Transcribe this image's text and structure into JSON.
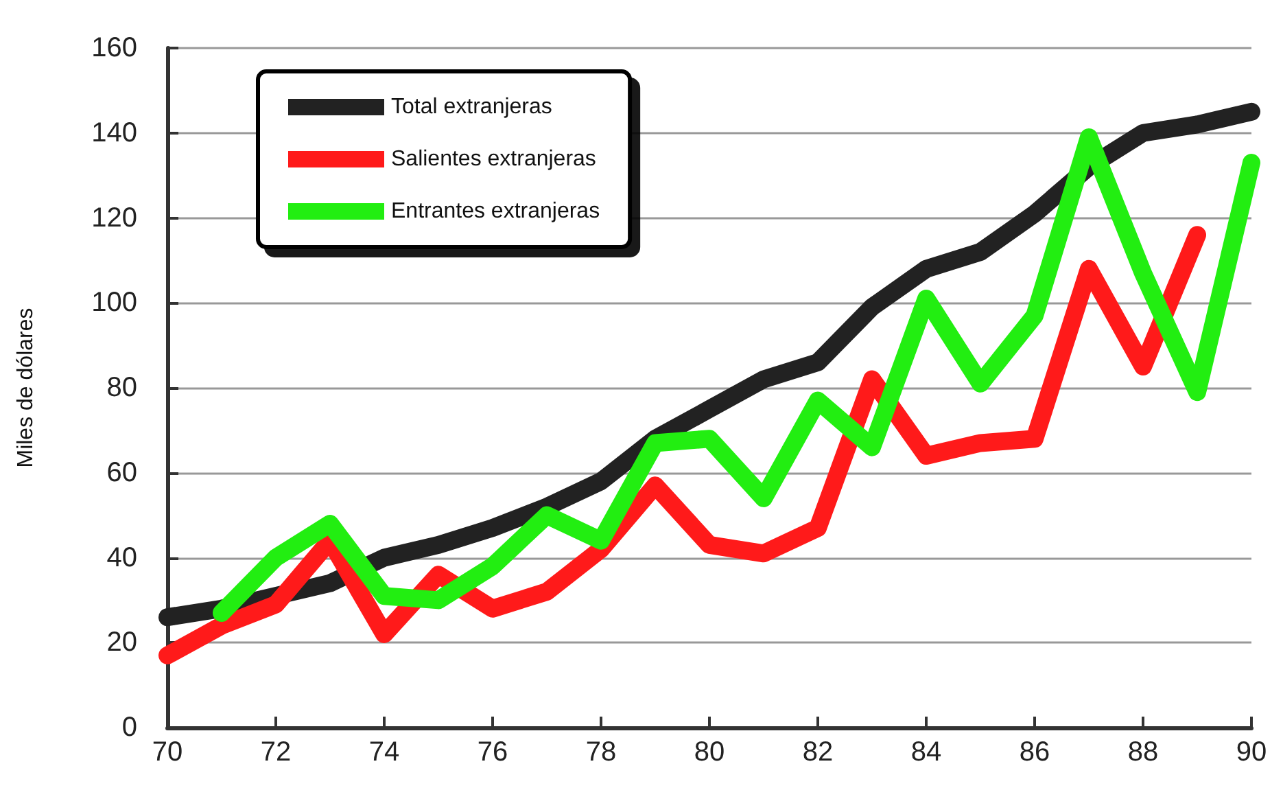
{
  "chart_data": {
    "type": "line",
    "ylabel": "Miles de dólares",
    "x": [
      70,
      71,
      72,
      73,
      74,
      75,
      76,
      77,
      78,
      79,
      80,
      81,
      82,
      83,
      84,
      85,
      86,
      87,
      88,
      89,
      90
    ],
    "series": [
      {
        "name": "Total extranjeras",
        "color": "#222222",
        "values": [
          26,
          28,
          31,
          34,
          40,
          43,
          47,
          52,
          58,
          68,
          75,
          82,
          86,
          99,
          108,
          112,
          121,
          132,
          140,
          142,
          145
        ]
      },
      {
        "name": "Salientes extranjeras",
        "color": "#ff1a1a",
        "values": [
          17,
          24,
          29,
          44,
          22,
          36,
          28,
          32,
          42,
          57,
          43,
          41,
          47,
          82,
          64,
          67,
          68,
          108,
          85,
          116,
          null
        ]
      },
      {
        "name": "Entrantes extranjeras",
        "color": "#22ee11",
        "values": [
          null,
          27,
          40,
          48,
          31,
          30,
          38,
          50,
          44,
          67,
          68,
          54,
          77,
          66,
          101,
          81,
          97,
          139,
          107,
          79,
          133
        ]
      }
    ],
    "xlim": [
      70,
      90
    ],
    "xticks": [
      70,
      72,
      74,
      76,
      78,
      80,
      82,
      84,
      86,
      88,
      90
    ],
    "ylim": [
      0,
      160
    ],
    "yticks": [
      0,
      20,
      40,
      60,
      80,
      100,
      120,
      140,
      160
    ],
    "grid": "y",
    "legend": "top left",
    "marker": "none",
    "line_style": "solid"
  }
}
